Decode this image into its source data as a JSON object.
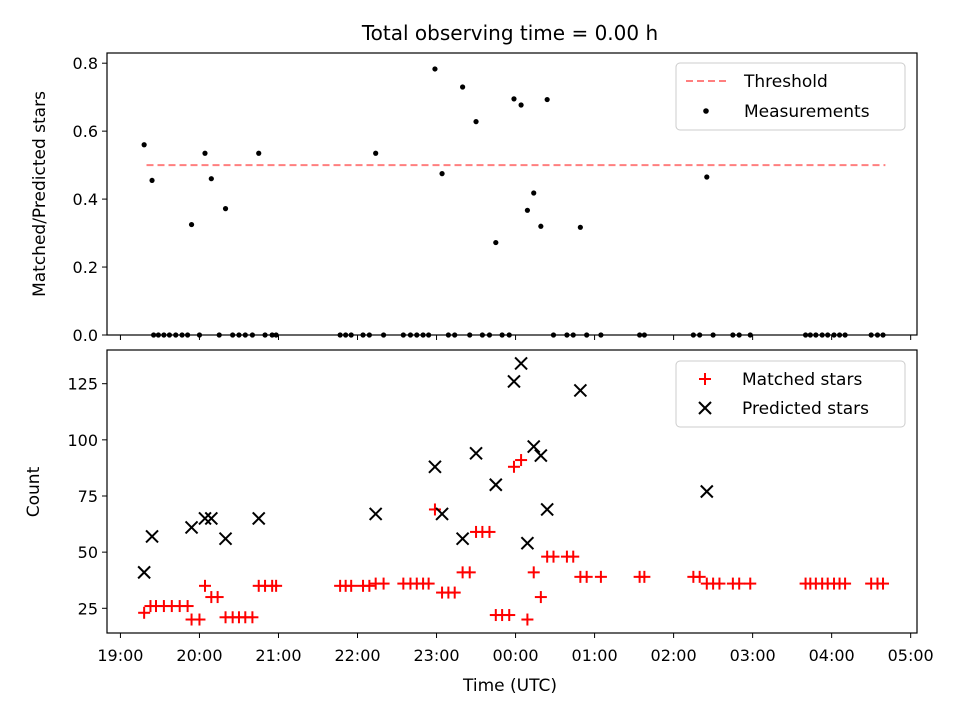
{
  "chart_data": [
    {
      "type": "scatter",
      "title": "Total observing time = 0.00 h",
      "xlabel": "",
      "ylabel": "Matched/Predicted stars",
      "xlim_hours": [
        18.83,
        29.08
      ],
      "ylim": [
        0,
        0.83
      ],
      "yticks": [
        "0.0",
        "0.2",
        "0.4",
        "0.6",
        "0.8"
      ],
      "legend_position": "top-right",
      "threshold": {
        "name": "Threshold",
        "value": 0.5,
        "x_start": 19.33,
        "x_end": 28.68,
        "color": "#ff7f7f",
        "style": "dashed"
      },
      "series": [
        {
          "name": "Measurements",
          "color": "#000000",
          "marker": "dot",
          "points": [
            [
              19.3,
              0.56
            ],
            [
              19.4,
              0.455
            ],
            [
              19.9,
              0.325
            ],
            [
              20.07,
              0.535
            ],
            [
              20.15,
              0.46
            ],
            [
              20.33,
              0.372
            ],
            [
              20.75,
              0.535
            ],
            [
              22.23,
              0.535
            ],
            [
              22.98,
              0.783
            ],
            [
              23.07,
              0.475
            ],
            [
              23.33,
              0.73
            ],
            [
              23.5,
              0.628
            ],
            [
              23.75,
              0.272
            ],
            [
              23.98,
              0.695
            ],
            [
              24.07,
              0.677
            ],
            [
              24.15,
              0.367
            ],
            [
              24.23,
              0.418
            ],
            [
              24.32,
              0.32
            ],
            [
              24.4,
              0.693
            ],
            [
              24.82,
              0.317
            ],
            [
              26.42,
              0.465
            ],
            [
              19.42,
              0.0
            ],
            [
              19.48,
              0.0
            ],
            [
              19.55,
              0.0
            ],
            [
              19.62,
              0.0
            ],
            [
              19.7,
              0.0
            ],
            [
              19.78,
              0.0
            ],
            [
              19.85,
              0.0
            ],
            [
              20.0,
              0.0
            ],
            [
              20.25,
              0.0
            ],
            [
              20.42,
              0.0
            ],
            [
              20.5,
              0.0
            ],
            [
              20.58,
              0.0
            ],
            [
              20.67,
              0.0
            ],
            [
              20.83,
              0.0
            ],
            [
              20.92,
              0.0
            ],
            [
              20.97,
              0.0
            ],
            [
              21.78,
              0.0
            ],
            [
              21.85,
              0.0
            ],
            [
              21.92,
              0.0
            ],
            [
              22.07,
              0.0
            ],
            [
              22.15,
              0.0
            ],
            [
              22.33,
              0.0
            ],
            [
              22.58,
              0.0
            ],
            [
              22.67,
              0.0
            ],
            [
              22.75,
              0.0
            ],
            [
              22.83,
              0.0
            ],
            [
              22.9,
              0.0
            ],
            [
              23.15,
              0.0
            ],
            [
              23.23,
              0.0
            ],
            [
              23.42,
              0.0
            ],
            [
              23.58,
              0.0
            ],
            [
              23.67,
              0.0
            ],
            [
              23.83,
              0.0
            ],
            [
              23.92,
              0.0
            ],
            [
              24.48,
              0.0
            ],
            [
              24.65,
              0.0
            ],
            [
              24.73,
              0.0
            ],
            [
              24.9,
              0.0
            ],
            [
              25.08,
              0.0
            ],
            [
              25.57,
              0.0
            ],
            [
              25.63,
              0.0
            ],
            [
              26.25,
              0.0
            ],
            [
              26.33,
              0.0
            ],
            [
              26.5,
              0.0
            ],
            [
              26.75,
              0.0
            ],
            [
              26.83,
              0.0
            ],
            [
              26.97,
              0.0
            ],
            [
              27.67,
              0.0
            ],
            [
              27.73,
              0.0
            ],
            [
              27.8,
              0.0
            ],
            [
              27.88,
              0.0
            ],
            [
              27.95,
              0.0
            ],
            [
              28.03,
              0.0
            ],
            [
              28.1,
              0.0
            ],
            [
              28.17,
              0.0
            ],
            [
              28.5,
              0.0
            ],
            [
              28.58,
              0.0
            ],
            [
              28.65,
              0.0
            ]
          ]
        }
      ]
    },
    {
      "type": "scatter",
      "title": "",
      "xlabel": "Time (UTC)",
      "ylabel": "Count",
      "xlim_hours": [
        18.83,
        29.08
      ],
      "ylim": [
        14,
        140
      ],
      "yticks": [
        "25",
        "50",
        "75",
        "100",
        "125"
      ],
      "xticks": [
        "19:00",
        "20:00",
        "21:00",
        "22:00",
        "23:00",
        "00:00",
        "01:00",
        "02:00",
        "03:00",
        "04:00",
        "05:00"
      ],
      "legend_position": "top-right",
      "series": [
        {
          "name": "Matched stars",
          "color": "#ff0000",
          "marker": "plus",
          "points": [
            [
              19.3,
              23
            ],
            [
              19.38,
              26
            ],
            [
              19.45,
              26
            ],
            [
              19.55,
              26
            ],
            [
              19.65,
              26
            ],
            [
              19.75,
              26
            ],
            [
              19.85,
              26
            ],
            [
              19.9,
              20
            ],
            [
              20.0,
              20
            ],
            [
              20.07,
              35
            ],
            [
              20.15,
              30
            ],
            [
              20.23,
              30
            ],
            [
              20.33,
              21
            ],
            [
              20.42,
              21
            ],
            [
              20.5,
              21
            ],
            [
              20.58,
              21
            ],
            [
              20.67,
              21
            ],
            [
              20.75,
              35
            ],
            [
              20.83,
              35
            ],
            [
              20.92,
              35
            ],
            [
              20.97,
              35
            ],
            [
              21.78,
              35
            ],
            [
              21.85,
              35
            ],
            [
              21.92,
              35
            ],
            [
              22.07,
              35
            ],
            [
              22.15,
              35
            ],
            [
              22.23,
              36
            ],
            [
              22.33,
              36
            ],
            [
              22.58,
              36
            ],
            [
              22.67,
              36
            ],
            [
              22.75,
              36
            ],
            [
              22.83,
              36
            ],
            [
              22.9,
              36
            ],
            [
              22.98,
              69
            ],
            [
              23.07,
              32
            ],
            [
              23.15,
              32
            ],
            [
              23.23,
              32
            ],
            [
              23.33,
              41
            ],
            [
              23.42,
              41
            ],
            [
              23.5,
              59
            ],
            [
              23.58,
              59
            ],
            [
              23.67,
              59
            ],
            [
              23.75,
              22
            ],
            [
              23.83,
              22
            ],
            [
              23.92,
              22
            ],
            [
              23.98,
              88
            ],
            [
              24.07,
              91
            ],
            [
              24.15,
              20
            ],
            [
              24.23,
              41
            ],
            [
              24.32,
              30
            ],
            [
              24.4,
              48
            ],
            [
              24.48,
              48
            ],
            [
              24.65,
              48
            ],
            [
              24.73,
              48
            ],
            [
              24.82,
              39
            ],
            [
              24.9,
              39
            ],
            [
              25.08,
              39
            ],
            [
              25.57,
              39
            ],
            [
              25.63,
              39
            ],
            [
              26.25,
              39
            ],
            [
              26.33,
              39
            ],
            [
              26.42,
              36
            ],
            [
              26.5,
              36
            ],
            [
              26.58,
              36
            ],
            [
              26.75,
              36
            ],
            [
              26.83,
              36
            ],
            [
              26.97,
              36
            ],
            [
              27.67,
              36
            ],
            [
              27.73,
              36
            ],
            [
              27.8,
              36
            ],
            [
              27.88,
              36
            ],
            [
              27.95,
              36
            ],
            [
              28.03,
              36
            ],
            [
              28.1,
              36
            ],
            [
              28.17,
              36
            ],
            [
              28.5,
              36
            ],
            [
              28.58,
              36
            ],
            [
              28.65,
              36
            ]
          ]
        },
        {
          "name": "Predicted stars",
          "color": "#000000",
          "marker": "x",
          "points": [
            [
              19.3,
              41
            ],
            [
              19.4,
              57
            ],
            [
              19.9,
              61
            ],
            [
              20.07,
              65
            ],
            [
              20.15,
              65
            ],
            [
              20.33,
              56
            ],
            [
              20.75,
              65
            ],
            [
              22.23,
              67
            ],
            [
              22.98,
              88
            ],
            [
              23.07,
              67
            ],
            [
              23.33,
              56
            ],
            [
              23.5,
              94
            ],
            [
              23.75,
              80
            ],
            [
              23.98,
              126
            ],
            [
              24.07,
              134
            ],
            [
              24.15,
              54
            ],
            [
              24.23,
              97
            ],
            [
              24.32,
              93
            ],
            [
              24.4,
              69
            ],
            [
              24.82,
              122
            ],
            [
              26.42,
              77
            ]
          ]
        }
      ]
    }
  ]
}
